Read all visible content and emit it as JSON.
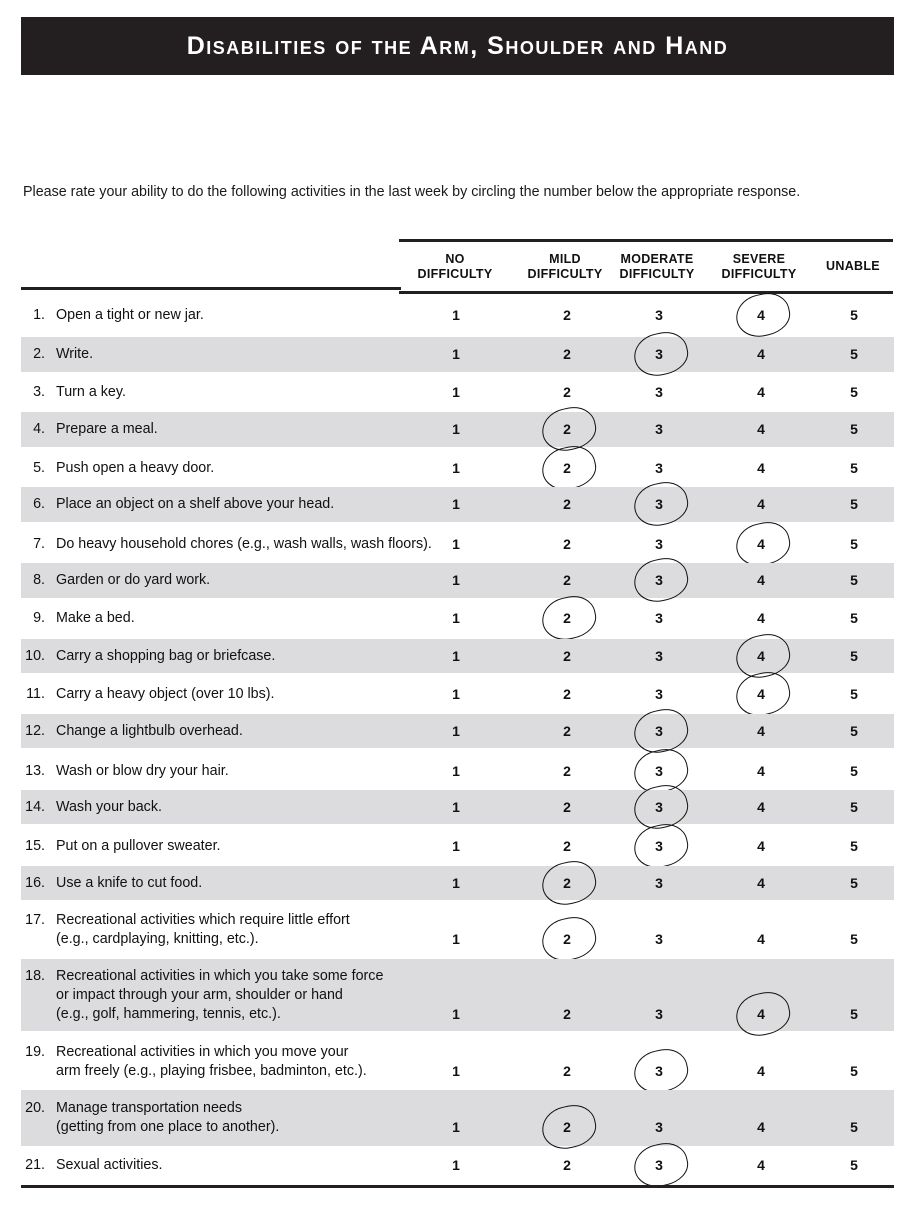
{
  "title": "Disabilities of the Arm, Shoulder and Hand",
  "instructions": "Please rate your ability to do the following activities in the last week by circling the number below the appropriate response.",
  "columns": [
    {
      "label": "NO\nDIFFICULTY",
      "value": "1"
    },
    {
      "label": "MILD\nDIFFICULTY",
      "value": "2"
    },
    {
      "label": "MODERATE\nDIFFICULTY",
      "value": "3"
    },
    {
      "label": "SEVERE\nDIFFICULTY",
      "value": "4"
    },
    {
      "label": "UNABLE",
      "value": "5"
    }
  ],
  "items": [
    {
      "n": "1.",
      "text": "Open a tight or new jar.",
      "circled": 4
    },
    {
      "n": "2.",
      "text": "Write.",
      "circled": 3
    },
    {
      "n": "3.",
      "text": "Turn a key.",
      "circled": null
    },
    {
      "n": "4.",
      "text": "Prepare a meal.",
      "circled": 2
    },
    {
      "n": "5.",
      "text": "Push open a heavy door.",
      "circled": 2
    },
    {
      "n": "6.",
      "text": "Place an object on a shelf above your head.",
      "circled": 3
    },
    {
      "n": "7.",
      "text": "Do heavy household chores (e.g., wash walls, wash floors).",
      "circled": 4
    },
    {
      "n": "8.",
      "text": "Garden or do yard work.",
      "circled": 3
    },
    {
      "n": "9.",
      "text": "Make a bed.",
      "circled": 2
    },
    {
      "n": "10.",
      "text": "Carry a shopping bag or briefcase.",
      "circled": 4
    },
    {
      "n": "11.",
      "text": "Carry a heavy object (over 10 lbs).",
      "circled": 4
    },
    {
      "n": "12.",
      "text": "Change a lightbulb overhead.",
      "circled": 3
    },
    {
      "n": "13.",
      "text": "Wash or blow dry your hair.",
      "circled": 3
    },
    {
      "n": "14.",
      "text": "Wash your back.",
      "circled": 3
    },
    {
      "n": "15.",
      "text": "Put on a pullover sweater.",
      "circled": 3
    },
    {
      "n": "16.",
      "text": "Use a knife to cut food.",
      "circled": 2
    },
    {
      "n": "17.",
      "text": "Recreational activities which require little effort\n(e.g., cardplaying, knitting, etc.).",
      "circled": 2
    },
    {
      "n": "18.",
      "text": "Recreational activities in which you take some force\nor impact through your arm, shoulder or hand\n(e.g., golf, hammering, tennis, etc.).",
      "circled": 4
    },
    {
      "n": "19.",
      "text": "Recreational activities in which you move your\narm freely (e.g., playing frisbee, badminton, etc.).",
      "circled": 3
    },
    {
      "n": "20.",
      "text": "Manage transportation needs\n(getting from one place to another).",
      "circled": 2
    },
    {
      "n": "21.",
      "text": "Sexual activities.",
      "circled": 3
    }
  ]
}
